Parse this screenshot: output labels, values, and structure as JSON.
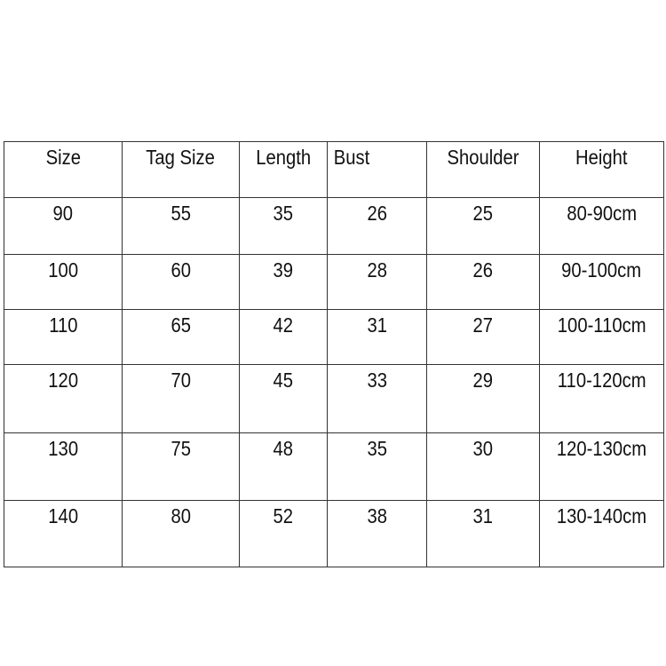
{
  "table": {
    "headers": [
      "Size",
      "Tag Size",
      "Length",
      "Bust",
      "Shoulder",
      "Height"
    ],
    "rows": [
      [
        "90",
        "55",
        "35",
        "26",
        "25",
        "80-90cm"
      ],
      [
        "100",
        "60",
        "39",
        "28",
        "26",
        "90-100cm"
      ],
      [
        "110",
        "65",
        "42",
        "31",
        "27",
        "100-110cm"
      ],
      [
        "120",
        "70",
        "45",
        "33",
        "29",
        "110-120cm"
      ],
      [
        "130",
        "75",
        "48",
        "35",
        "30",
        "120-130cm"
      ],
      [
        "140",
        "80",
        "52",
        "38",
        "31",
        "130-140cm"
      ]
    ]
  }
}
